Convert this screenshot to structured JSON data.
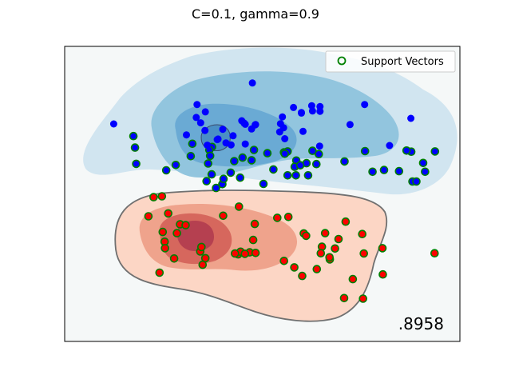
{
  "chart_data": {
    "type": "scatter",
    "title": "C=0.1, gamma=0.9",
    "score_label": ".8958",
    "xlim": [
      0,
      100
    ],
    "ylim": [
      0,
      100
    ],
    "grid": false,
    "ticks_visible": false,
    "legend": {
      "position": "top-right",
      "entries": [
        "Support Vectors"
      ]
    },
    "colors": {
      "class_positive": "#0000ff",
      "class_negative": "#ff0000",
      "support_vector_ring": "#008000",
      "decision_boundary": "#707070",
      "background": "#f5f8f8"
    },
    "series": [
      {
        "class": "blue",
        "points": [
          [
            47.5,
            87.6
          ],
          [
            33.5,
            80.3
          ],
          [
            35.6,
            77.8
          ],
          [
            33.3,
            75.9
          ],
          [
            34.4,
            74.1
          ],
          [
            30.8,
            70.0
          ],
          [
            32.3,
            67.0
          ],
          [
            40.0,
            71.9
          ],
          [
            40.8,
            67.3
          ],
          [
            38.6,
            68.4
          ],
          [
            37.3,
            65.9
          ],
          [
            36.6,
            64.9
          ],
          [
            36.3,
            60.3
          ],
          [
            42.9,
            61.1
          ],
          [
            47.9,
            64.9
          ],
          [
            48.2,
            73.4
          ],
          [
            51.3,
            63.8
          ],
          [
            55.4,
            72.4
          ],
          [
            55.7,
            68.7
          ],
          [
            55.5,
            64.1
          ],
          [
            57.9,
            79.3
          ],
          [
            60.3,
            71.2
          ],
          [
            59.9,
            77.4
          ],
          [
            62.5,
            79.9
          ],
          [
            64.6,
            79.6
          ],
          [
            72.2,
            73.5
          ],
          [
            75.9,
            80.3
          ],
          [
            64.5,
            66.2
          ],
          [
            64.3,
            63.5
          ],
          [
            63.7,
            60.1
          ],
          [
            70.8,
            61.0
          ],
          [
            61.6,
            56.3
          ],
          [
            58.5,
            56.3
          ],
          [
            56.4,
            56.3
          ],
          [
            52.8,
            58.3
          ],
          [
            50.3,
            53.4
          ],
          [
            44.4,
            55.5
          ],
          [
            42.0,
            57.2
          ],
          [
            37.2,
            56.6
          ],
          [
            35.9,
            54.3
          ],
          [
            22.5,
            48.9
          ],
          [
            18.1,
            60.2
          ],
          [
            12.4,
            73.7
          ],
          [
            17.8,
            65.7
          ],
          [
            17.4,
            69.6
          ],
          [
            25.7,
            58.0
          ],
          [
            28.1,
            59.8
          ],
          [
            24.6,
            49.2
          ],
          [
            87.6,
            75.6
          ],
          [
            87.7,
            64.3
          ],
          [
            86.5,
            64.7
          ],
          [
            82.2,
            66.4
          ],
          [
            76.0,
            64.5
          ],
          [
            77.9,
            57.5
          ],
          [
            80.8,
            58.1
          ],
          [
            84.6,
            57.7
          ],
          [
            88.0,
            54.2
          ],
          [
            89.0,
            54.2
          ],
          [
            90.7,
            60.5
          ],
          [
            91.2,
            57.5
          ],
          [
            93.7,
            64.4
          ],
          [
            61.2,
            60.4
          ],
          [
            64.6,
            78.0
          ],
          [
            55.1,
            76.1
          ],
          [
            54.4,
            71.0
          ],
          [
            48.3,
            73.5
          ],
          [
            47.3,
            72.0
          ],
          [
            45.7,
            73.6
          ],
          [
            44.8,
            74.8
          ],
          [
            45.4,
            74.0
          ],
          [
            42.6,
            69.7
          ],
          [
            38.8,
            68.6
          ],
          [
            35.5,
            71.5
          ],
          [
            36.1,
            66.5
          ],
          [
            47.3,
            61.4
          ],
          [
            56.4,
            64.4
          ],
          [
            58.6,
            61.3
          ],
          [
            62.7,
            64.6
          ],
          [
            58.2,
            59.2
          ],
          [
            59.6,
            59.7
          ],
          [
            45.7,
            66.9
          ],
          [
            31.9,
            62.8
          ],
          [
            45.0,
            62.3
          ],
          [
            39.9,
            53.3
          ],
          [
            55.7,
            63.6
          ],
          [
            62.7,
            78.1
          ],
          [
            59.9,
            77.6
          ],
          [
            54.6,
            73.8
          ],
          [
            42.1,
            66.6
          ],
          [
            36.8,
            62.9
          ],
          [
            40.2,
            55.1
          ],
          [
            38.3,
            52.0
          ],
          [
            44.1,
            45.7
          ],
          [
            34.3,
            30.5
          ],
          [
            46.8,
            30.2
          ],
          [
            65.1,
            32.1
          ],
          [
            64.8,
            29.9
          ],
          [
            65.9,
            36.7
          ],
          [
            68.4,
            31.5
          ],
          [
            71.1,
            40.6
          ],
          [
            75.7,
            29.8
          ],
          [
            75.3,
            36.4
          ],
          [
            56.6,
            42.2
          ],
          [
            53.8,
            41.9
          ],
          [
            60.5,
            36.6
          ],
          [
            61.1,
            35.8
          ],
          [
            48.1,
            39.8
          ],
          [
            40.1,
            42.6
          ],
          [
            26.2,
            43.4
          ],
          [
            21.2,
            42.4
          ],
          [
            29.2,
            39.7
          ],
          [
            30.6,
            39.4
          ],
          [
            28.4,
            36.7
          ],
          [
            24.8,
            37.1
          ],
          [
            25.3,
            33.8
          ],
          [
            25.4,
            31.6
          ],
          [
            27.7,
            28.1
          ],
          [
            34.6,
            32.0
          ],
          [
            35.6,
            28.2
          ],
          [
            34.9,
            26.0
          ],
          [
            24.0,
            23.3
          ],
          [
            43.9,
            29.5
          ],
          [
            44.5,
            30.4
          ],
          [
            43.1,
            29.8
          ],
          [
            45.6,
            29.7
          ],
          [
            48.3,
            30.0
          ],
          [
            47.7,
            34.4
          ],
          [
            55.5,
            27.3
          ],
          [
            60.1,
            22.2
          ],
          [
            58.1,
            25.1
          ],
          [
            63.8,
            24.5
          ],
          [
            67.1,
            27.8
          ],
          [
            69.3,
            34.7
          ],
          [
            67.0,
            28.5
          ],
          [
            70.7,
            14.7
          ],
          [
            75.5,
            14.5
          ],
          [
            72.9,
            21.1
          ],
          [
            80.5,
            22.7
          ],
          [
            80.4,
            31.6
          ],
          [
            93.6,
            29.9
          ]
        ]
      }
    ]
  }
}
